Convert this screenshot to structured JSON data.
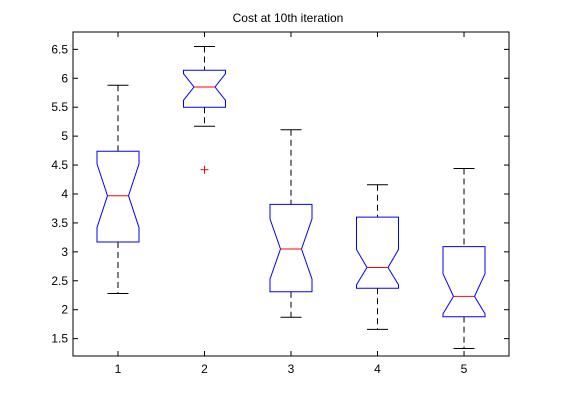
{
  "chart_data": {
    "type": "boxplot",
    "title": "Cost at 10th iteration",
    "xlabel": "",
    "ylabel": "",
    "notched": true,
    "categories": [
      "1",
      "2",
      "3",
      "4",
      "5"
    ],
    "ylim": [
      1.2,
      6.8
    ],
    "yticks": [
      1.5,
      2,
      2.5,
      3,
      3.5,
      4,
      4.5,
      5,
      5.5,
      6,
      6.5
    ],
    "ytick_labels": [
      "1.5",
      "2",
      "2.5",
      "3",
      "3.5",
      "4",
      "4.5",
      "5",
      "5.5",
      "6",
      "6.5"
    ],
    "grid": false,
    "legend": "none",
    "colors": {
      "box": "#0000ff",
      "median": "#ff0000",
      "whisker": "#000000",
      "outlier": "#ff0000",
      "axes": "#000000"
    },
    "boxes": [
      {
        "label": "1",
        "whisker_low": 2.28,
        "q1": 3.17,
        "median": 3.97,
        "q3": 4.74,
        "whisker_high": 5.88,
        "notch_low": 3.42,
        "notch_high": 4.52,
        "outliers": []
      },
      {
        "label": "2",
        "whisker_low": 5.17,
        "q1": 5.5,
        "median": 5.85,
        "q3": 6.14,
        "whisker_high": 6.55,
        "notch_low": 5.62,
        "notch_high": 6.08,
        "outliers": [
          4.42
        ]
      },
      {
        "label": "3",
        "whisker_low": 1.87,
        "q1": 2.31,
        "median": 3.05,
        "q3": 3.82,
        "whisker_high": 5.11,
        "notch_low": 2.53,
        "notch_high": 3.57,
        "outliers": []
      },
      {
        "label": "4",
        "whisker_low": 1.66,
        "q1": 2.37,
        "median": 2.73,
        "q3": 3.6,
        "whisker_high": 4.16,
        "notch_low": 2.43,
        "notch_high": 3.04,
        "outliers": []
      },
      {
        "label": "5",
        "whisker_low": 1.33,
        "q1": 1.88,
        "median": 2.23,
        "q3": 3.09,
        "whisker_high": 4.44,
        "notch_low": 1.93,
        "notch_high": 2.62,
        "outliers": []
      }
    ]
  }
}
